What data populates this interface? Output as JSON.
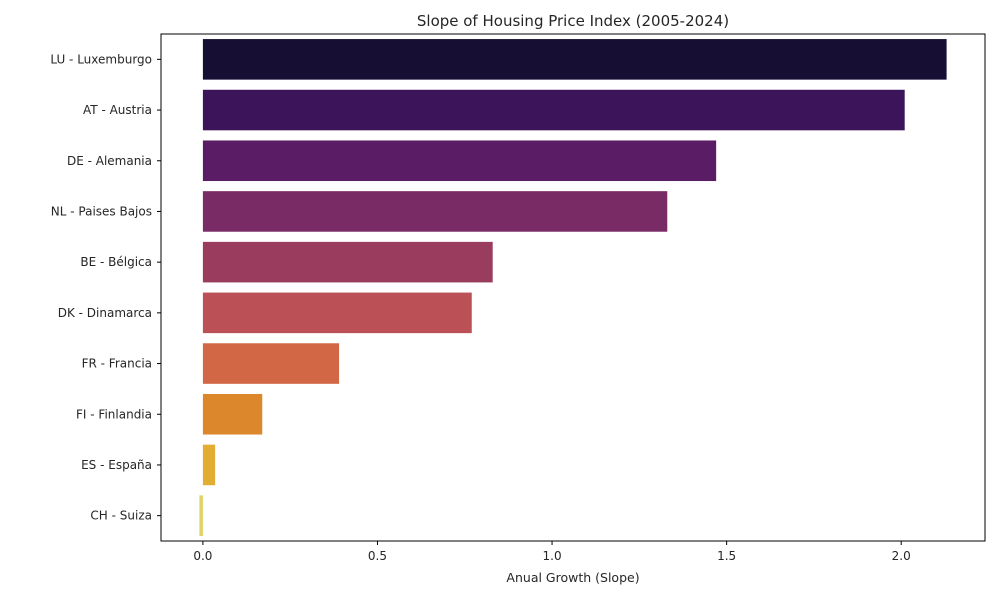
{
  "chart_data": {
    "type": "bar",
    "orientation": "horizontal",
    "title": "Slope of Housing Price Index (2005-2024)",
    "xlabel": "Anual Growth (Slope)",
    "ylabel": "",
    "xlim": [
      -0.12,
      2.24
    ],
    "xticks": [
      0.0,
      0.5,
      1.0,
      1.5,
      2.0
    ],
    "xtick_labels": [
      "0.0",
      "0.5",
      "1.0",
      "1.5",
      "2.0"
    ],
    "grid": false,
    "legend": "none",
    "categories": [
      "LU - Luxemburgo",
      "AT - Austria",
      "DE - Alemania",
      "NL - Paises Bajos",
      "BE - Bélgica",
      "DK - Dinamarca",
      "FR - Francia",
      "FI - Finlandia",
      "ES - España",
      "CH - Suiza"
    ],
    "values": [
      2.13,
      2.01,
      1.47,
      1.33,
      0.83,
      0.77,
      0.39,
      0.17,
      0.035,
      -0.01
    ],
    "colors": [
      "#160f33",
      "#3c1459",
      "#5a1d65",
      "#782b64",
      "#9a3c5d",
      "#bb5056",
      "#d26745",
      "#dc872c",
      "#e1ad33",
      "#dfd463"
    ]
  }
}
